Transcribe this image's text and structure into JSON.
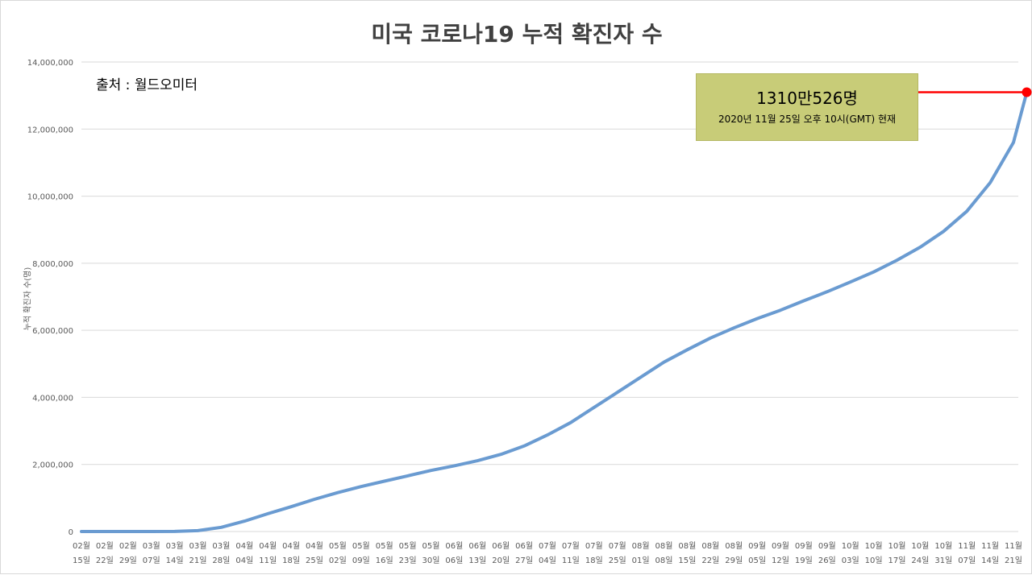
{
  "chart_data": {
    "type": "line",
    "title": "미국 코로나19 누적 확진자 수",
    "ylabel": "누적 확진자 수(명)",
    "xlabel": "",
    "source_note": "출처 : 월드오미터",
    "ylim": [
      0,
      14000000
    ],
    "y_ticks": [
      "0",
      "2,000,000",
      "4,000,000",
      "6,000,000",
      "8,000,000",
      "10,000,000",
      "12,000,000",
      "14,000,000"
    ],
    "grid": true,
    "legend": "none",
    "line_color": "#6a9bd1",
    "marker_color": "#ff0000",
    "callout": {
      "value_text": "1310만526명",
      "note_text": "2020년 11월 25일 오후 10시(GMT) 현재",
      "value": 13100526
    },
    "x_labels": [
      [
        "02월",
        "15일"
      ],
      [
        "02월",
        "22일"
      ],
      [
        "02월",
        "29일"
      ],
      [
        "03월",
        "07일"
      ],
      [
        "03월",
        "14일"
      ],
      [
        "03월",
        "21일"
      ],
      [
        "03월",
        "28일"
      ],
      [
        "04월",
        "04일"
      ],
      [
        "04월",
        "11일"
      ],
      [
        "04월",
        "18일"
      ],
      [
        "04월",
        "25일"
      ],
      [
        "05월",
        "02일"
      ],
      [
        "05월",
        "09일"
      ],
      [
        "05월",
        "16일"
      ],
      [
        "05월",
        "23일"
      ],
      [
        "05월",
        "30일"
      ],
      [
        "06월",
        "06일"
      ],
      [
        "06월",
        "13일"
      ],
      [
        "06월",
        "20일"
      ],
      [
        "06월",
        "27일"
      ],
      [
        "07월",
        "04일"
      ],
      [
        "07월",
        "11일"
      ],
      [
        "07월",
        "18일"
      ],
      [
        "07월",
        "25일"
      ],
      [
        "08월",
        "01일"
      ],
      [
        "08월",
        "08일"
      ],
      [
        "08월",
        "15일"
      ],
      [
        "08월",
        "22일"
      ],
      [
        "08월",
        "29일"
      ],
      [
        "09월",
        "05일"
      ],
      [
        "09월",
        "12일"
      ],
      [
        "09월",
        "19일"
      ],
      [
        "09월",
        "26일"
      ],
      [
        "10월",
        "03일"
      ],
      [
        "10월",
        "10일"
      ],
      [
        "10월",
        "17일"
      ],
      [
        "10월",
        "24일"
      ],
      [
        "10월",
        "31일"
      ],
      [
        "11월",
        "07일"
      ],
      [
        "11월",
        "14일"
      ],
      [
        "11월",
        "21일"
      ]
    ],
    "series": [
      {
        "x": [
          "02-15",
          "02-22",
          "02-29",
          "03-07",
          "03-14",
          "03-21",
          "03-28",
          "04-04",
          "04-11",
          "04-18",
          "04-25",
          "05-02",
          "05-09",
          "05-16",
          "05-23",
          "05-30",
          "06-06",
          "06-13",
          "06-20",
          "06-27",
          "07-04",
          "07-11",
          "07-18",
          "07-25",
          "08-01",
          "08-08",
          "08-15",
          "08-22",
          "08-29",
          "09-05",
          "09-12",
          "09-19",
          "09-26",
          "10-03",
          "10-10",
          "10-17",
          "10-24",
          "10-31",
          "11-07",
          "11-14",
          "11-21",
          "11-25"
        ],
        "values": [
          15,
          35,
          70,
          500,
          3000,
          26000,
          125000,
          310000,
          530000,
          740000,
          960000,
          1160000,
          1340000,
          1500000,
          1660000,
          1820000,
          1960000,
          2110000,
          2300000,
          2550000,
          2880000,
          3250000,
          3700000,
          4150000,
          4600000,
          5050000,
          5420000,
          5770000,
          6070000,
          6350000,
          6600000,
          6880000,
          7150000,
          7440000,
          7740000,
          8090000,
          8480000,
          8950000,
          9550000,
          10400000,
          11600000,
          13100526
        ]
      }
    ]
  }
}
